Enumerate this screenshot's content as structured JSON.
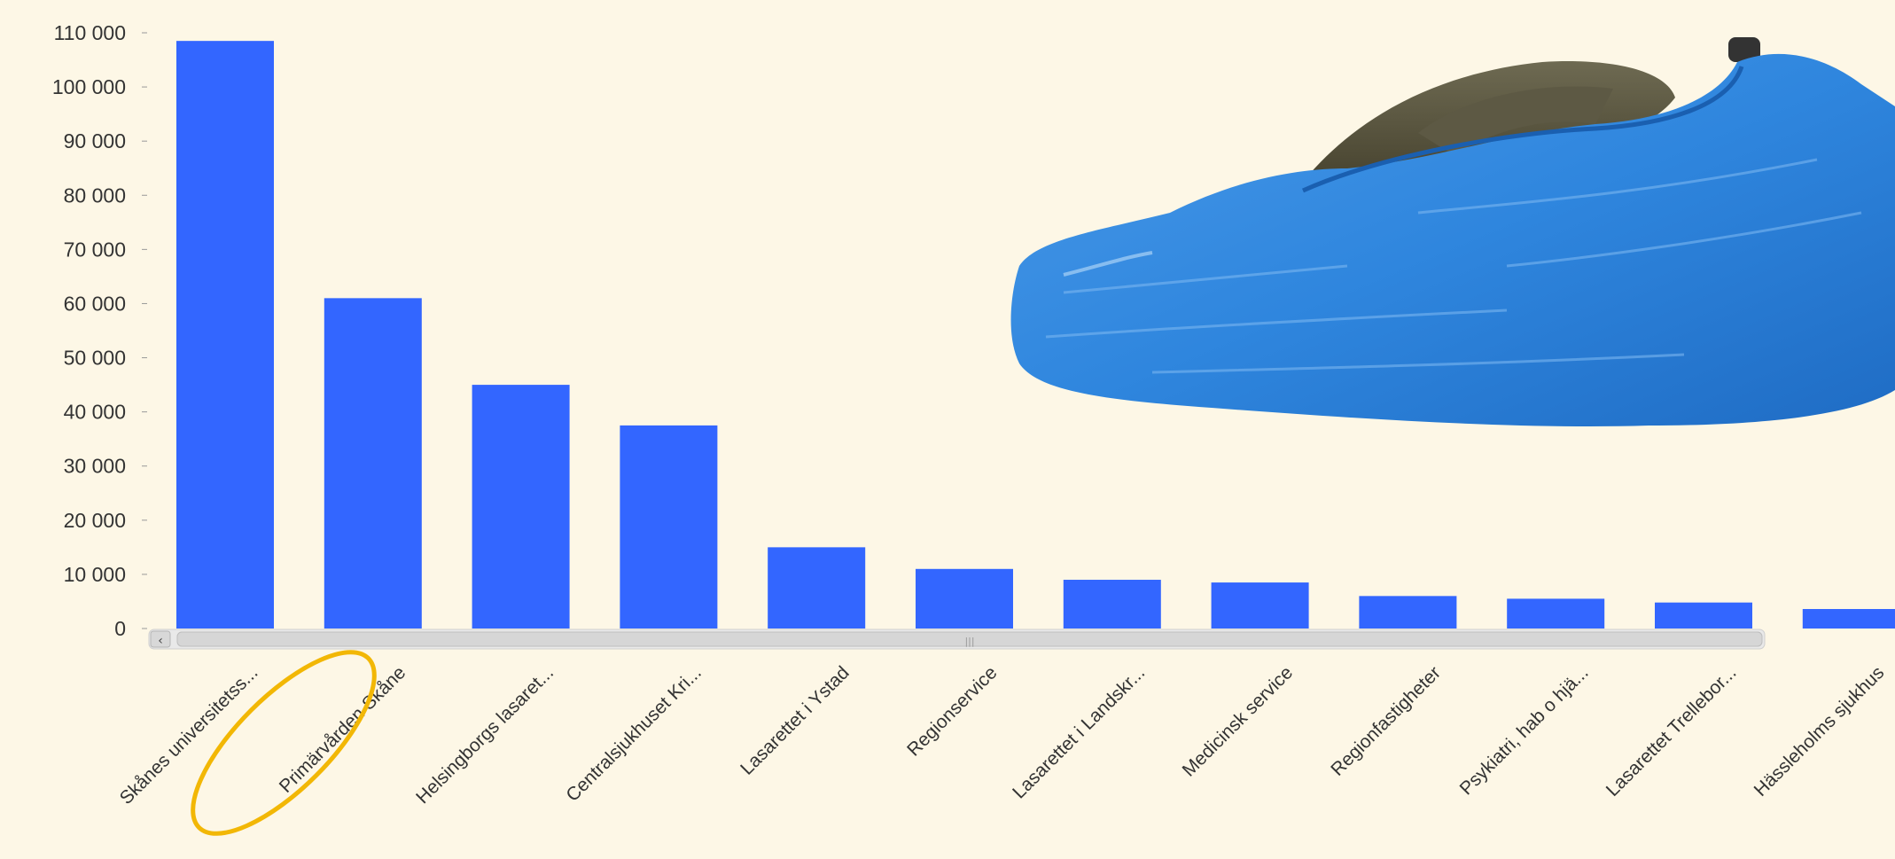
{
  "chart_data": {
    "type": "bar",
    "title": "",
    "xlabel": "",
    "ylabel": "",
    "ylim": [
      0,
      110000
    ],
    "yticks": [
      "110 000",
      "100 000",
      "90 000",
      "80 000",
      "70 000",
      "60 000",
      "50 000",
      "40 000",
      "30 000",
      "20 000",
      "10 000",
      "0"
    ],
    "categories": [
      "Skånes universitetss...",
      "Primärvården Skåne",
      "Helsingborgs lasaret...",
      "Centralsjukhuset Kri...",
      "Lasarettet i Ystad",
      "Regionservice",
      "Lasarettet i Landskr...",
      "Medicinsk service",
      "Regionfastigheter",
      "Psykiatri, hab o hjä...",
      "Lasarettet Trellebor...",
      "Hässleholms sjukhus"
    ],
    "values": [
      108500,
      61000,
      45000,
      37500,
      15000,
      11000,
      9000,
      8500,
      6000,
      5500,
      4800,
      3600
    ],
    "grid": false,
    "legend": "none",
    "bar_color": "#3366ff",
    "highlight_category": "Primärvården Skåne",
    "highlight_color": "#f2b705",
    "scrollbar": {
      "left_arrow": "‹",
      "thumb": "|||"
    },
    "decoration": "blue-shoe-cover-photo"
  }
}
